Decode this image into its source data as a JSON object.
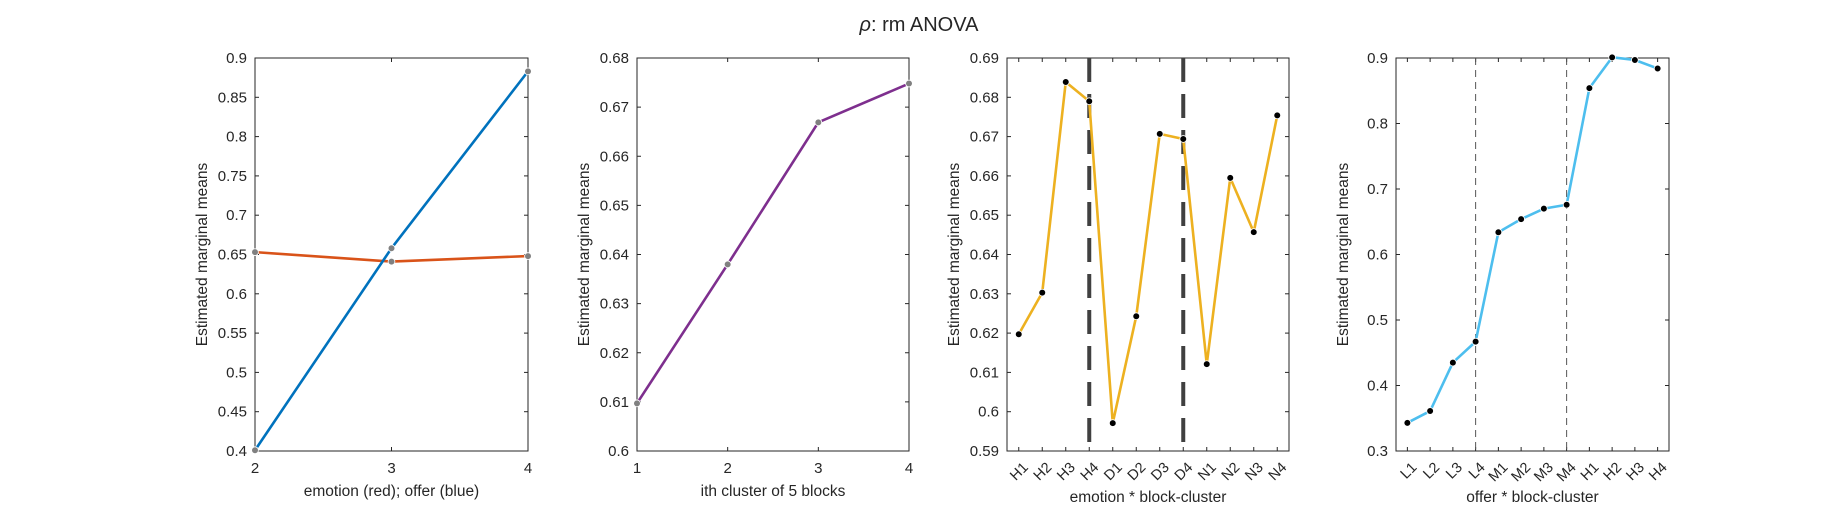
{
  "figure": {
    "title_symbol": "ρ",
    "title_rest": ": rm ANOVA"
  },
  "chart_data": [
    {
      "type": "line",
      "xlabel": "emotion (red); offer (blue)",
      "ylabel": "Estimated marginal means",
      "xlim": [
        2,
        4
      ],
      "ylim": [
        0.4,
        0.9
      ],
      "xticks": [
        2,
        3,
        4
      ],
      "xtick_labels": [
        "2",
        "3",
        "4"
      ],
      "yticks": [
        0.4,
        0.45,
        0.5,
        0.55,
        0.6,
        0.65,
        0.7,
        0.75,
        0.8,
        0.85,
        0.9
      ],
      "ytick_labels": [
        "0.4",
        "0.45",
        "0.5",
        "0.55",
        "0.6",
        "0.65",
        "0.7",
        "0.75",
        "0.8",
        "0.85",
        "0.9"
      ],
      "x": [
        2,
        3,
        4
      ],
      "series": [
        {
          "color": "#D95319",
          "values": [
            0.653,
            0.641,
            0.648
          ]
        },
        {
          "color": "#0072BD",
          "values": [
            0.401,
            0.658,
            0.883
          ]
        }
      ],
      "marker_color": "#808080",
      "vlines": [],
      "vline_style": "none"
    },
    {
      "type": "line",
      "xlabel": "ith cluster of 5 blocks",
      "ylabel": "Estimated marginal means",
      "xlim": [
        1,
        4
      ],
      "ylim": [
        0.6,
        0.68
      ],
      "xticks": [
        1,
        2,
        3,
        4
      ],
      "xtick_labels": [
        "1",
        "2",
        "3",
        "4"
      ],
      "yticks": [
        0.6,
        0.61,
        0.62,
        0.63,
        0.64,
        0.65,
        0.66,
        0.67,
        0.68
      ],
      "ytick_labels": [
        "0.6",
        "0.61",
        "0.62",
        "0.63",
        "0.64",
        "0.65",
        "0.66",
        "0.67",
        "0.68"
      ],
      "x": [
        1,
        2,
        3,
        4
      ],
      "series": [
        {
          "color": "#7E2F8E",
          "values": [
            0.6097,
            0.638,
            0.6669,
            0.6748
          ]
        }
      ],
      "marker_color": "#808080",
      "vlines": [],
      "vline_style": "none"
    },
    {
      "type": "line",
      "xlabel": "emotion * block-cluster",
      "ylabel": "Estimated marginal means",
      "xlim": [
        0.5,
        12.5
      ],
      "ylim": [
        0.59,
        0.69
      ],
      "categories": [
        "H1",
        "H2",
        "H3",
        "H4",
        "D1",
        "D2",
        "D3",
        "D4",
        "N1",
        "N2",
        "N3",
        "N4"
      ],
      "yticks": [
        0.59,
        0.6,
        0.61,
        0.62,
        0.63,
        0.64,
        0.65,
        0.66,
        0.67,
        0.68,
        0.69
      ],
      "ytick_labels": [
        "0.59",
        "0.6",
        "0.61",
        "0.62",
        "0.63",
        "0.64",
        "0.65",
        "0.66",
        "0.67",
        "0.68",
        "0.69"
      ],
      "series": [
        {
          "color": "#EDB120",
          "values": [
            0.6197,
            0.6303,
            0.6839,
            0.679,
            0.5971,
            0.6243,
            0.6707,
            0.6694,
            0.6121,
            0.6595,
            0.6457,
            0.6754
          ]
        }
      ],
      "marker_color": "#000000",
      "vlines": [
        4,
        8
      ],
      "vline_style": "thick-dashed"
    },
    {
      "type": "line",
      "xlabel": "offer * block-cluster",
      "ylabel": "Estimated marginal means",
      "xlim": [
        0.5,
        12.5
      ],
      "ylim": [
        0.3,
        0.9
      ],
      "categories": [
        "L1",
        "L2",
        "L3",
        "L4",
        "M1",
        "M2",
        "M3",
        "M4",
        "H1",
        "H2",
        "H3",
        "H4"
      ],
      "yticks": [
        0.3,
        0.4,
        0.5,
        0.6,
        0.7,
        0.8,
        0.9
      ],
      "ytick_labels": [
        "0.3",
        "0.4",
        "0.5",
        "0.6",
        "0.7",
        "0.8",
        "0.9"
      ],
      "series": [
        {
          "color": "#4DBEEE",
          "values": [
            0.343,
            0.361,
            0.435,
            0.467,
            0.634,
            0.654,
            0.67,
            0.676,
            0.854,
            0.901,
            0.897,
            0.884
          ]
        }
      ],
      "marker_color": "#000000",
      "vlines": [
        4,
        8
      ],
      "vline_style": "thin-dashed"
    }
  ]
}
